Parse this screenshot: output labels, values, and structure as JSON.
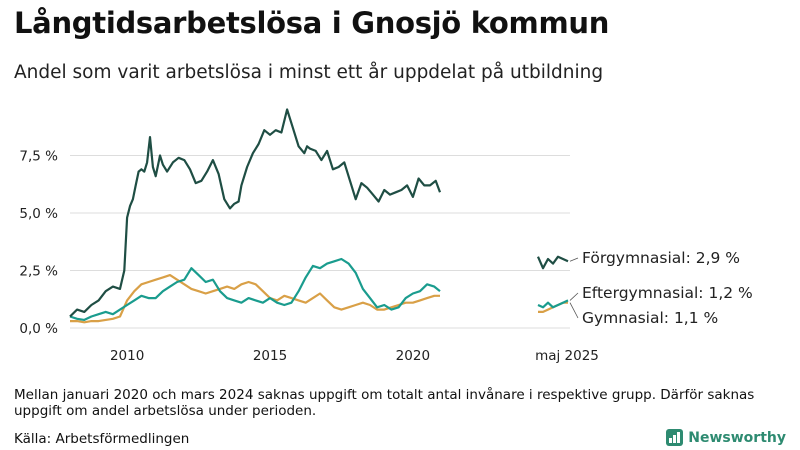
{
  "title": "Långtidsarbetslösa i Gnosjö kommun",
  "subtitle": "Andel som varit arbetslösa i minst ett år uppdelat på utbildning",
  "note": "Mellan januari 2020 och mars 2024 saknas uppgift om totalt antal invånare i respektive grupp. Därför saknas uppgift om andel arbetslösa under perioden.",
  "source": "Källa: Arbetsförmedlingen",
  "brand": "Newsworthy",
  "colors": {
    "forgymnasial": "#1f4e44",
    "eftergymnasial": "#1a9c8e",
    "gymnasial": "#d9a047",
    "grid": "#dddddd"
  },
  "chart_data": {
    "type": "line",
    "ylim": [
      0,
      10
    ],
    "y_ticks": [
      0,
      2.5,
      5,
      7.5
    ],
    "y_tick_labels": [
      "0,0 %",
      "2,5 %",
      "5,0 %",
      "7,5 %"
    ],
    "x_tick_labels": [
      {
        "x": 2010,
        "label": "2010"
      },
      {
        "x": 2015,
        "label": "2015"
      },
      {
        "x": 2020,
        "label": "2020"
      }
    ],
    "end_period_label": "maj 2025",
    "grid": true,
    "series": [
      {
        "key": "forgymnasial",
        "label": "Förgymnasial: 2,9 %",
        "x": [
          2008.0,
          2008.25,
          2008.5,
          2008.75,
          2009.0,
          2009.25,
          2009.5,
          2009.75,
          2009.9,
          2010.0,
          2010.1,
          2010.2,
          2010.3,
          2010.4,
          2010.5,
          2010.6,
          2010.7,
          2010.8,
          2010.9,
          2011.0,
          2011.1,
          2011.15,
          2011.25,
          2011.4,
          2011.6,
          2011.8,
          2012.0,
          2012.2,
          2012.4,
          2012.6,
          2012.8,
          2013.0,
          2013.2,
          2013.4,
          2013.6,
          2013.75,
          2013.9,
          2014.0,
          2014.2,
          2014.4,
          2014.6,
          2014.8,
          2015.0,
          2015.2,
          2015.4,
          2015.6,
          2015.8,
          2016.0,
          2016.2,
          2016.3,
          2016.4,
          2016.6,
          2016.8,
          2017.0,
          2017.2,
          2017.4,
          2017.6,
          2017.8,
          2018.0,
          2018.2,
          2018.4,
          2018.6,
          2018.8,
          2019.0,
          2019.2,
          2019.4,
          2019.6,
          2019.8,
          2020.0,
          2020.2,
          2020.4,
          2020.6,
          2020.8,
          2020.95
        ],
        "y": [
          0.5,
          0.8,
          0.7,
          1.0,
          1.2,
          1.6,
          1.8,
          1.7,
          2.5,
          4.8,
          5.3,
          5.6,
          6.2,
          6.8,
          6.9,
          6.8,
          7.2,
          8.3,
          7.0,
          6.6,
          7.2,
          7.5,
          7.1,
          6.8,
          7.2,
          7.4,
          7.3,
          6.9,
          6.3,
          6.4,
          6.8,
          7.3,
          6.7,
          5.6,
          5.2,
          5.4,
          5.5,
          6.2,
          7.0,
          7.6,
          8.0,
          8.6,
          8.4,
          8.6,
          8.5,
          9.5,
          8.7,
          7.9,
          7.6,
          7.9,
          7.8,
          7.7,
          7.3,
          7.7,
          6.9,
          7.0,
          7.2,
          6.4,
          5.6,
          6.3,
          6.1,
          5.8,
          5.5,
          6.0,
          5.8,
          5.9,
          6.0,
          6.2,
          5.7,
          6.5,
          6.2,
          6.2,
          6.4,
          5.9
        ]
      },
      {
        "key": "eftergymnasial",
        "label": "Eftergymnasial: 1,2 %",
        "x": [
          2008.0,
          2008.25,
          2008.5,
          2008.75,
          2009.0,
          2009.25,
          2009.5,
          2009.75,
          2010.0,
          2010.25,
          2010.5,
          2010.75,
          2011.0,
          2011.25,
          2011.5,
          2011.75,
          2012.0,
          2012.25,
          2012.5,
          2012.75,
          2013.0,
          2013.25,
          2013.5,
          2013.75,
          2014.0,
          2014.25,
          2014.5,
          2014.75,
          2015.0,
          2015.25,
          2015.5,
          2015.75,
          2016.0,
          2016.25,
          2016.5,
          2016.75,
          2017.0,
          2017.25,
          2017.5,
          2017.75,
          2018.0,
          2018.25,
          2018.5,
          2018.75,
          2019.0,
          2019.25,
          2019.5,
          2019.75,
          2020.0,
          2020.25,
          2020.5,
          2020.75,
          2020.95
        ],
        "y": [
          0.5,
          0.4,
          0.35,
          0.5,
          0.6,
          0.7,
          0.6,
          0.8,
          1.0,
          1.2,
          1.4,
          1.3,
          1.3,
          1.6,
          1.8,
          2.0,
          2.1,
          2.6,
          2.3,
          2.0,
          2.1,
          1.6,
          1.3,
          1.2,
          1.1,
          1.3,
          1.2,
          1.1,
          1.3,
          1.1,
          1.0,
          1.1,
          1.6,
          2.2,
          2.7,
          2.6,
          2.8,
          2.9,
          3.0,
          2.8,
          2.4,
          1.7,
          1.3,
          0.9,
          1.0,
          0.8,
          0.9,
          1.3,
          1.5,
          1.6,
          1.9,
          1.8,
          1.6
        ]
      },
      {
        "key": "gymnasial",
        "label": "Gymnasial: 1,1 %",
        "x": [
          2008.0,
          2008.25,
          2008.5,
          2008.75,
          2009.0,
          2009.25,
          2009.5,
          2009.75,
          2010.0,
          2010.25,
          2010.5,
          2010.75,
          2011.0,
          2011.25,
          2011.5,
          2011.75,
          2012.0,
          2012.25,
          2012.5,
          2012.75,
          2013.0,
          2013.25,
          2013.5,
          2013.75,
          2014.0,
          2014.25,
          2014.5,
          2014.75,
          2015.0,
          2015.25,
          2015.5,
          2015.75,
          2016.0,
          2016.25,
          2016.5,
          2016.75,
          2017.0,
          2017.25,
          2017.5,
          2017.75,
          2018.0,
          2018.25,
          2018.5,
          2018.75,
          2019.0,
          2019.25,
          2019.5,
          2019.75,
          2020.0,
          2020.25,
          2020.5,
          2020.75,
          2020.95
        ],
        "y": [
          0.3,
          0.3,
          0.25,
          0.3,
          0.3,
          0.35,
          0.4,
          0.5,
          1.2,
          1.6,
          1.9,
          2.0,
          2.1,
          2.2,
          2.3,
          2.1,
          1.9,
          1.7,
          1.6,
          1.5,
          1.6,
          1.7,
          1.8,
          1.7,
          1.9,
          2.0,
          1.9,
          1.6,
          1.3,
          1.2,
          1.4,
          1.3,
          1.2,
          1.1,
          1.3,
          1.5,
          1.2,
          0.9,
          0.8,
          0.9,
          1.0,
          1.1,
          1.0,
          0.8,
          0.8,
          0.9,
          1.0,
          1.1,
          1.1,
          1.2,
          1.3,
          1.4,
          1.4
        ]
      }
    ],
    "recent_series": [
      {
        "key": "forgymnasial",
        "y": [
          3.1,
          2.6,
          3.0,
          2.8,
          3.1,
          3.0,
          2.9
        ]
      },
      {
        "key": "eftergymnasial",
        "y": [
          1.0,
          0.9,
          1.1,
          0.9,
          1.0,
          1.1,
          1.2
        ]
      },
      {
        "key": "gymnasial",
        "y": [
          0.7,
          0.7,
          0.8,
          0.9,
          1.0,
          1.1,
          1.1
        ]
      }
    ]
  }
}
